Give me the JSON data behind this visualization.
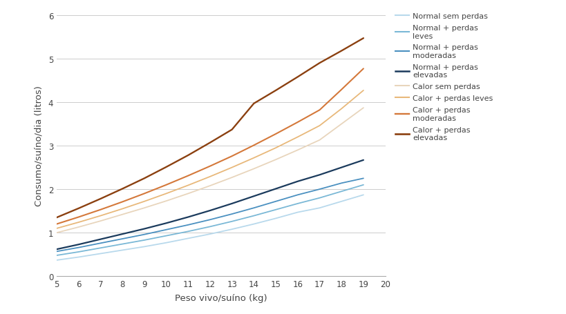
{
  "x": [
    5,
    6,
    7,
    8,
    9,
    10,
    11,
    12,
    13,
    14,
    15,
    16,
    17,
    18,
    19
  ],
  "series": [
    {
      "label": "Normal sem perdas",
      "color": "#b8d9ec",
      "linewidth": 1.3,
      "y": [
        0.37,
        0.44,
        0.52,
        0.6,
        0.68,
        0.77,
        0.87,
        0.97,
        1.08,
        1.2,
        1.33,
        1.47,
        1.57,
        1.72,
        1.87
      ]
    },
    {
      "label": "Normal + perdas\nleves",
      "color": "#7ab8d6",
      "linewidth": 1.3,
      "y": [
        0.48,
        0.56,
        0.65,
        0.74,
        0.83,
        0.93,
        1.03,
        1.14,
        1.26,
        1.39,
        1.53,
        1.67,
        1.8,
        1.95,
        2.1
      ]
    },
    {
      "label": "Normal + perdas\nmoderadas",
      "color": "#4a90c0",
      "linewidth": 1.3,
      "y": [
        0.57,
        0.66,
        0.76,
        0.86,
        0.96,
        1.07,
        1.18,
        1.3,
        1.43,
        1.57,
        1.72,
        1.87,
        2.0,
        2.14,
        2.25
      ]
    },
    {
      "label": "Normal + perdas\nelevadas",
      "color": "#1a3a5c",
      "linewidth": 1.6,
      "y": [
        0.62,
        0.73,
        0.85,
        0.97,
        1.09,
        1.22,
        1.36,
        1.51,
        1.67,
        1.84,
        2.01,
        2.18,
        2.33,
        2.5,
        2.67
      ]
    },
    {
      "label": "Calor sem perdas",
      "color": "#e8d5bc",
      "linewidth": 1.3,
      "y": [
        1.0,
        1.13,
        1.27,
        1.42,
        1.57,
        1.73,
        1.9,
        2.08,
        2.27,
        2.47,
        2.68,
        2.9,
        3.13,
        3.5,
        3.87
      ]
    },
    {
      "label": "Calor + perdas leves",
      "color": "#e8b87a",
      "linewidth": 1.3,
      "y": [
        1.1,
        1.24,
        1.39,
        1.55,
        1.72,
        1.9,
        2.09,
        2.29,
        2.5,
        2.72,
        2.95,
        3.2,
        3.46,
        3.85,
        4.27
      ]
    },
    {
      "label": "Calor + perdas\nmoderadas",
      "color": "#d4783a",
      "linewidth": 1.5,
      "y": [
        1.2,
        1.36,
        1.53,
        1.71,
        1.9,
        2.1,
        2.31,
        2.53,
        2.76,
        3.01,
        3.27,
        3.54,
        3.82,
        4.29,
        4.77
      ]
    },
    {
      "label": "Calor + perdas\nelevadas",
      "color": "#8b4010",
      "linewidth": 1.7,
      "y": [
        1.35,
        1.56,
        1.78,
        2.01,
        2.25,
        2.51,
        2.78,
        3.07,
        3.37,
        3.97,
        4.27,
        4.58,
        4.9,
        5.18,
        5.47
      ]
    }
  ],
  "xlabel": "Peso vivo/suíno (kg)",
  "ylabel": "Consumo/suíno/dia (litros)",
  "xlim": [
    5,
    20
  ],
  "ylim": [
    0,
    6
  ],
  "xticks": [
    5,
    6,
    7,
    8,
    9,
    10,
    11,
    12,
    13,
    14,
    15,
    16,
    17,
    18,
    19,
    20
  ],
  "yticks": [
    0,
    1,
    2,
    3,
    4,
    5,
    6
  ],
  "background_color": "#ffffff",
  "grid_color": "#cccccc",
  "legend_fontsize": 8.0,
  "axis_fontsize": 9.5,
  "tick_fontsize": 8.5
}
